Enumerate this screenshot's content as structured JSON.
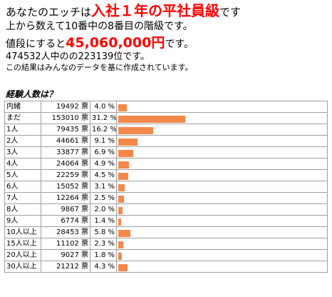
{
  "header": {
    "line1_prefix": "あなたのエッチは",
    "line1_rank": "入社１年の平社員級",
    "line1_suffix": "です",
    "line2": "上から数えて10番中の8番目の階級です。",
    "line3_prefix": "値段にすると",
    "line3_price": "45,060,000円",
    "line3_suffix": "です。",
    "line4": "474532人中のの223139位です。",
    "line5": "この結果はみんなのデータを基に作成されています。"
  },
  "section_title": "経験人数は？",
  "colors": {
    "accent_red": "#ff0000",
    "bar": "#f4884a",
    "border": "#a0a0a0"
  },
  "rows": [
    {
      "label": "内緒",
      "count": "19492",
      "unit": "票",
      "pct": "4.0 %",
      "value": 4.0
    },
    {
      "label": "まだ",
      "count": "153010",
      "unit": "票",
      "pct": "31.2 %",
      "value": 31.2
    },
    {
      "label": "1人",
      "count": "79435",
      "unit": "票",
      "pct": "16.2 %",
      "value": 16.2
    },
    {
      "label": "2人",
      "count": "44661",
      "unit": "票",
      "pct": "9.1 %",
      "value": 9.1
    },
    {
      "label": "3人",
      "count": "33877",
      "unit": "票",
      "pct": "6.9 %",
      "value": 6.9
    },
    {
      "label": "4人",
      "count": "24064",
      "unit": "票",
      "pct": "4.9 %",
      "value": 4.9
    },
    {
      "label": "5人",
      "count": "22259",
      "unit": "票",
      "pct": "4.5 %",
      "value": 4.5
    },
    {
      "label": "6人",
      "count": "15052",
      "unit": "票",
      "pct": "3.1 %",
      "value": 3.1
    },
    {
      "label": "7人",
      "count": "12264",
      "unit": "票",
      "pct": "2.5 %",
      "value": 2.5
    },
    {
      "label": "8人",
      "count": "9867",
      "unit": "票",
      "pct": "2.0 %",
      "value": 2.0
    },
    {
      "label": "9人",
      "count": "6774",
      "unit": "票",
      "pct": "1.4 %",
      "value": 1.4
    },
    {
      "label": "10人以上",
      "count": "28453",
      "unit": "票",
      "pct": "5.8 %",
      "value": 5.8
    },
    {
      "label": "15人以上",
      "count": "11102",
      "unit": "票",
      "pct": "2.3 %",
      "value": 2.3
    },
    {
      "label": "20人以上",
      "count": "9027",
      "unit": "票",
      "pct": "1.8 %",
      "value": 1.8
    },
    {
      "label": "30人以上",
      "count": "21212",
      "unit": "票",
      "pct": "4.3 %",
      "value": 4.3
    }
  ]
}
